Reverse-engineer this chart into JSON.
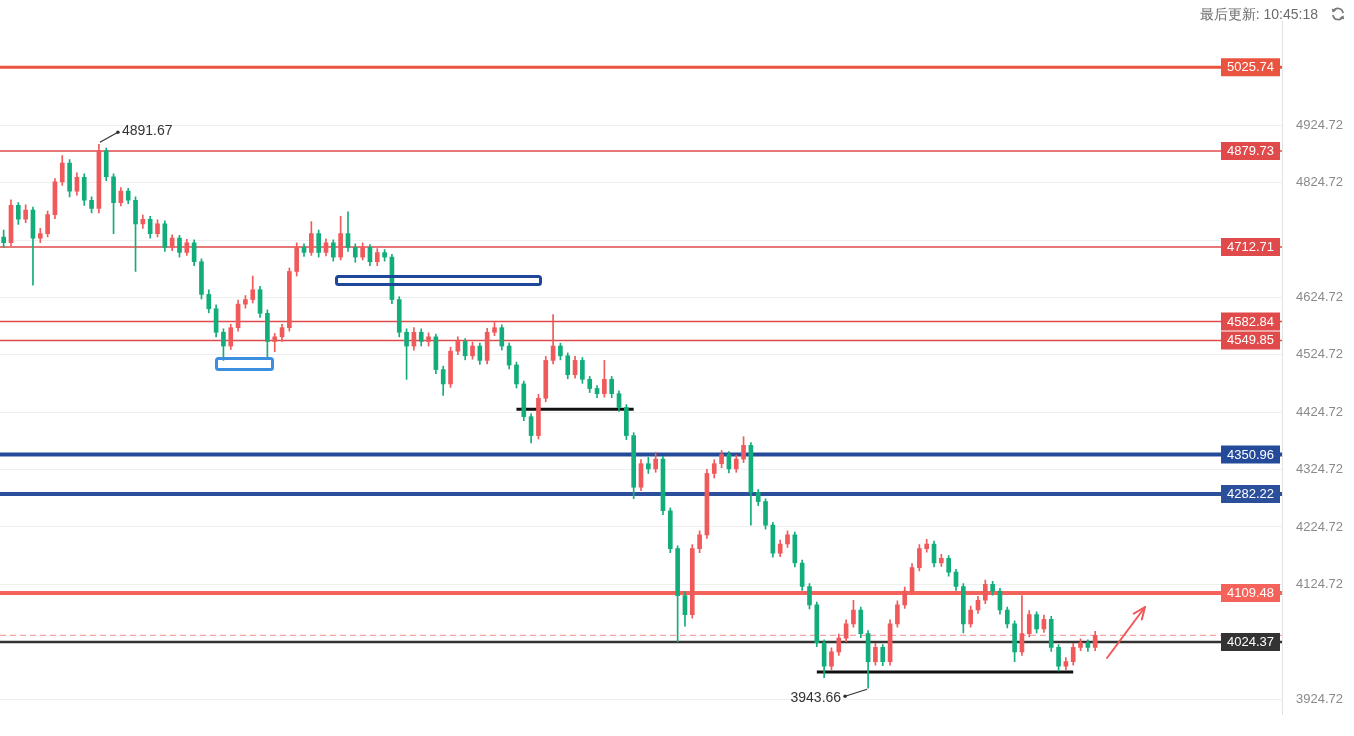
{
  "chart_data": {
    "type": "candlestick",
    "categories": [
      null,
      null,
      null,
      null,
      null,
      null,
      null,
      null,
      null,
      null,
      null,
      null,
      null,
      null,
      null,
      null,
      null,
      null,
      null,
      null,
      null,
      null,
      null,
      null,
      null,
      null,
      null,
      null,
      null,
      null,
      null,
      null,
      null,
      null,
      null,
      null,
      null,
      null,
      null,
      null,
      null,
      null,
      null,
      null,
      null,
      null,
      null,
      null,
      null,
      null,
      null,
      null,
      null,
      null,
      null,
      null,
      null,
      null,
      null,
      null,
      null,
      null,
      null,
      null,
      null,
      null,
      null,
      null,
      null,
      null,
      null,
      null,
      null,
      null,
      null,
      null,
      null,
      null,
      null,
      null,
      null,
      null,
      null,
      null,
      null,
      null,
      null,
      null,
      null,
      null,
      null,
      null,
      null,
      null,
      null,
      null,
      null,
      null,
      null,
      null,
      null,
      null,
      null,
      null,
      null,
      null,
      null,
      null,
      null,
      null,
      null,
      null,
      null,
      null,
      null,
      null,
      null,
      null,
      null,
      null,
      null,
      null,
      null,
      null,
      null,
      null,
      null,
      null,
      null,
      null,
      null,
      null,
      null,
      null,
      null,
      null,
      null,
      null,
      null,
      null,
      null,
      null,
      null,
      null,
      null,
      null,
      null,
      null,
      null,
      null,
      null,
      null,
      null,
      null,
      null,
      null,
      null,
      null,
      null,
      null,
      null,
      null,
      null,
      null,
      null,
      null,
      null,
      null,
      null,
      null,
      null,
      null,
      null,
      null,
      null
    ],
    "ohlc": [
      [
        4730,
        4742,
        4712,
        4720
      ],
      [
        4720,
        4795,
        4715,
        4785
      ],
      [
        4785,
        4790,
        4752,
        4761
      ],
      [
        4761,
        4786,
        4755,
        4777
      ],
      [
        4777,
        4782,
        4646,
        4728
      ],
      [
        4728,
        4745,
        4720,
        4736
      ],
      [
        4736,
        4775,
        4730,
        4769
      ],
      [
        4769,
        4832,
        4762,
        4826
      ],
      [
        4826,
        4872,
        4820,
        4859
      ],
      [
        4859,
        4865,
        4800,
        4810
      ],
      [
        4810,
        4842,
        4803,
        4834
      ],
      [
        4834,
        4840,
        4785,
        4794
      ],
      [
        4794,
        4800,
        4772,
        4780
      ],
      [
        4780,
        4891.67,
        4772,
        4880
      ],
      [
        4880,
        4885,
        4828,
        4835
      ],
      [
        4835,
        4840,
        4736,
        4790
      ],
      [
        4790,
        4816,
        4784,
        4810
      ],
      [
        4810,
        4815,
        4788,
        4794
      ],
      [
        4794,
        4800,
        4670,
        4753
      ],
      [
        4753,
        4768,
        4745,
        4761
      ],
      [
        4761,
        4766,
        4728,
        4736
      ],
      [
        4736,
        4760,
        4730,
        4753
      ],
      [
        4753,
        4758,
        4705,
        4712
      ],
      [
        4712,
        4734,
        4706,
        4728
      ],
      [
        4728,
        4733,
        4695,
        4703
      ],
      [
        4703,
        4726,
        4698,
        4720
      ],
      [
        4720,
        4725,
        4680,
        4687
      ],
      [
        4687,
        4692,
        4622,
        4630
      ],
      [
        4630,
        4638,
        4598,
        4605
      ],
      [
        4605,
        4612,
        4556,
        4564
      ],
      [
        4564,
        4570,
        4515,
        4540
      ],
      [
        4540,
        4578,
        4534,
        4572
      ],
      [
        4572,
        4620,
        4566,
        4613
      ],
      [
        4613,
        4628,
        4606,
        4621
      ],
      [
        4621,
        4662,
        4615,
        4638
      ],
      [
        4638,
        4644,
        4590,
        4597
      ],
      [
        4597,
        4603,
        4518,
        4548
      ],
      [
        4548,
        4562,
        4530,
        4556
      ],
      [
        4556,
        4578,
        4548,
        4572
      ],
      [
        4572,
        4676,
        4566,
        4670
      ],
      [
        4670,
        4720,
        4662,
        4712
      ],
      [
        4712,
        4718,
        4696,
        4703
      ],
      [
        4703,
        4757,
        4698,
        4736
      ],
      [
        4736,
        4742,
        4695,
        4703
      ],
      [
        4703,
        4727,
        4697,
        4720
      ],
      [
        4720,
        4725,
        4688,
        4695
      ],
      [
        4695,
        4766,
        4690,
        4736
      ],
      [
        4736,
        4774,
        4705,
        4712
      ],
      [
        4712,
        4718,
        4686,
        4695
      ],
      [
        4695,
        4720,
        4690,
        4712
      ],
      [
        4712,
        4717,
        4680,
        4687
      ],
      [
        4687,
        4710,
        4680,
        4703
      ],
      [
        4703,
        4708,
        4688,
        4695
      ],
      [
        4695,
        4700,
        4614,
        4621
      ],
      [
        4621,
        4626,
        4556,
        4564
      ],
      [
        4564,
        4570,
        4482,
        4540
      ],
      [
        4540,
        4572,
        4533,
        4564
      ],
      [
        4564,
        4570,
        4540,
        4548
      ],
      [
        4548,
        4563,
        4540,
        4556
      ],
      [
        4556,
        4561,
        4492,
        4499
      ],
      [
        4499,
        4505,
        4454,
        4474
      ],
      [
        4474,
        4538,
        4468,
        4531
      ],
      [
        4531,
        4556,
        4525,
        4548
      ],
      [
        4548,
        4553,
        4516,
        4523
      ],
      [
        4523,
        4547,
        4517,
        4540
      ],
      [
        4540,
        4545,
        4508,
        4515
      ],
      [
        4515,
        4571,
        4509,
        4564
      ],
      [
        4564,
        4581,
        4558,
        4572
      ],
      [
        4572,
        4577,
        4533,
        4540
      ],
      [
        4540,
        4545,
        4500,
        4507
      ],
      [
        4507,
        4512,
        4467,
        4474
      ],
      [
        4474,
        4479,
        4410,
        4417
      ],
      [
        4417,
        4422,
        4371,
        4384
      ],
      [
        4384,
        4456,
        4378,
        4449
      ],
      [
        4449,
        4522,
        4443,
        4515
      ],
      [
        4515,
        4595,
        4509,
        4540
      ],
      [
        4540,
        4545,
        4516,
        4523
      ],
      [
        4523,
        4528,
        4483,
        4490
      ],
      [
        4490,
        4522,
        4484,
        4515
      ],
      [
        4515,
        4520,
        4475,
        4482
      ],
      [
        4482,
        4487,
        4459,
        4466
      ],
      [
        4466,
        4471,
        4450,
        4457
      ],
      [
        4457,
        4515,
        4451,
        4482
      ],
      [
        4482,
        4487,
        4450,
        4457
      ],
      [
        4457,
        4462,
        4426,
        4433
      ],
      [
        4433,
        4438,
        4377,
        4384
      ],
      [
        4384,
        4389,
        4274,
        4294
      ],
      [
        4294,
        4342,
        4288,
        4335
      ],
      [
        4335,
        4346,
        4318,
        4326
      ],
      [
        4326,
        4355,
        4320,
        4343
      ],
      [
        4343,
        4348,
        4246,
        4253
      ],
      [
        4253,
        4258,
        4180,
        4187
      ],
      [
        4187,
        4192,
        4025,
        4105
      ],
      [
        4105,
        4112,
        4052,
        4072
      ],
      [
        4072,
        4194,
        4066,
        4187
      ],
      [
        4187,
        4218,
        4180,
        4211
      ],
      [
        4211,
        4325,
        4205,
        4318
      ],
      [
        4318,
        4342,
        4310,
        4335
      ],
      [
        4335,
        4358,
        4328,
        4351
      ],
      [
        4351,
        4356,
        4319,
        4326
      ],
      [
        4326,
        4350,
        4320,
        4343
      ],
      [
        4343,
        4382,
        4337,
        4367
      ],
      [
        4367,
        4372,
        4228,
        4285
      ],
      [
        4285,
        4290,
        4262,
        4269
      ],
      [
        4269,
        4274,
        4221,
        4228
      ],
      [
        4228,
        4233,
        4172,
        4179
      ],
      [
        4179,
        4202,
        4173,
        4195
      ],
      [
        4195,
        4218,
        4189,
        4211
      ],
      [
        4211,
        4216,
        4155,
        4162
      ],
      [
        4162,
        4167,
        4114,
        4121
      ],
      [
        4121,
        4126,
        4082,
        4089
      ],
      [
        4089,
        4094,
        4016,
        4023
      ],
      [
        4023,
        4028,
        3962,
        3982
      ],
      [
        3982,
        4014,
        3976,
        4007
      ],
      [
        4007,
        4038,
        4001,
        4031
      ],
      [
        4031,
        4063,
        4025,
        4056
      ],
      [
        4056,
        4097,
        4050,
        4080
      ],
      [
        4080,
        4085,
        4032,
        4039
      ],
      [
        4039,
        4044,
        3943.66,
        3990
      ],
      [
        3990,
        4022,
        3984,
        4015
      ],
      [
        4015,
        4020,
        3983,
        3990
      ],
      [
        3990,
        4063,
        3984,
        4056
      ],
      [
        4056,
        4096,
        4050,
        4089
      ],
      [
        4089,
        4120,
        4083,
        4113
      ],
      [
        4113,
        4161,
        4107,
        4154
      ],
      [
        4154,
        4194,
        4148,
        4187
      ],
      [
        4187,
        4203,
        4181,
        4195
      ],
      [
        4195,
        4200,
        4155,
        4162
      ],
      [
        4162,
        4177,
        4156,
        4170
      ],
      [
        4170,
        4175,
        4139,
        4146
      ],
      [
        4146,
        4151,
        4114,
        4121
      ],
      [
        4121,
        4126,
        4040,
        4056
      ],
      [
        4056,
        4087,
        4050,
        4080
      ],
      [
        4080,
        4104,
        4074,
        4097
      ],
      [
        4097,
        4132,
        4091,
        4125
      ],
      [
        4125,
        4130,
        4106,
        4113
      ],
      [
        4113,
        4118,
        4073,
        4080
      ],
      [
        4080,
        4085,
        4049,
        4056
      ],
      [
        4056,
        4061,
        3990,
        4007
      ],
      [
        4007,
        4105,
        4001,
        4039
      ],
      [
        4039,
        4079,
        4033,
        4072
      ],
      [
        4072,
        4077,
        4040,
        4047
      ],
      [
        4047,
        4071,
        4041,
        4064
      ],
      [
        4064,
        4069,
        4008,
        4015
      ],
      [
        4015,
        4020,
        3974,
        3982
      ],
      [
        3982,
        3997,
        3976,
        3990
      ],
      [
        3990,
        4022,
        3984,
        4015
      ],
      [
        4015,
        4030,
        4009,
        4023
      ],
      [
        4023,
        4028,
        4008,
        4015
      ],
      [
        4015,
        4043,
        4009,
        4036
      ],
      null,
      null,
      null,
      null,
      null,
      null,
      null,
      null,
      null,
      null,
      null,
      null,
      null,
      null,
      null,
      null,
      null,
      null,
      null,
      null,
      null,
      null,
      null,
      null,
      null
    ],
    "colors": [
      "#13ad7c",
      "#f05a5a",
      "#13ad7c",
      "#f05a5a",
      "#13ad7c",
      "#f05a5a",
      "#f05a5a",
      "#f05a5a",
      "#f05a5a",
      "#13ad7c",
      "#f05a5a",
      "#13ad7c",
      "#13ad7c",
      "#f05a5a",
      "#13ad7c",
      "#13ad7c",
      "#f05a5a",
      "#13ad7c",
      "#13ad7c",
      "#f05a5a",
      "#13ad7c",
      "#f05a5a",
      "#13ad7c",
      "#f05a5a",
      "#13ad7c",
      "#f05a5a",
      "#13ad7c",
      "#13ad7c",
      "#13ad7c",
      "#13ad7c",
      "#13ad7c",
      "#f05a5a",
      "#f05a5a",
      "#f05a5a",
      "#f05a5a",
      "#13ad7c",
      "#13ad7c",
      "#f05a5a",
      "#f05a5a",
      "#f05a5a",
      "#f05a5a",
      "#13ad7c",
      "#f05a5a",
      "#13ad7c",
      "#f05a5a",
      "#13ad7c",
      "#f05a5a",
      "#13ad7c",
      "#13ad7c",
      "#f05a5a",
      "#13ad7c",
      "#f05a5a",
      "#13ad7c",
      "#13ad7c",
      "#13ad7c",
      "#13ad7c",
      "#f05a5a",
      "#13ad7c",
      "#f05a5a",
      "#13ad7c",
      "#13ad7c",
      "#f05a5a",
      "#f05a5a",
      "#13ad7c",
      "#f05a5a",
      "#13ad7c",
      "#f05a5a",
      "#f05a5a",
      "#13ad7c",
      "#13ad7c",
      "#13ad7c",
      "#13ad7c",
      "#13ad7c",
      "#f05a5a",
      "#f05a5a",
      "#f05a5a",
      "#13ad7c",
      "#13ad7c",
      "#f05a5a",
      "#13ad7c",
      "#13ad7c",
      "#13ad7c",
      "#f05a5a",
      "#13ad7c",
      "#13ad7c",
      "#13ad7c",
      "#13ad7c",
      "#f05a5a",
      "#13ad7c",
      "#f05a5a",
      "#13ad7c",
      "#13ad7c",
      "#13ad7c",
      "#13ad7c",
      "#f05a5a",
      "#f05a5a",
      "#f05a5a",
      "#f05a5a",
      "#f05a5a",
      "#13ad7c",
      "#f05a5a",
      "#f05a5a",
      "#13ad7c",
      "#13ad7c",
      "#13ad7c",
      "#13ad7c",
      "#f05a5a",
      "#f05a5a",
      "#13ad7c",
      "#13ad7c",
      "#13ad7c",
      "#13ad7c",
      "#13ad7c",
      "#f05a5a",
      "#f05a5a",
      "#f05a5a",
      "#f05a5a",
      "#13ad7c",
      "#13ad7c",
      "#f05a5a",
      "#13ad7c",
      "#f05a5a",
      "#f05a5a",
      "#f05a5a",
      "#f05a5a",
      "#f05a5a",
      "#f05a5a",
      "#13ad7c",
      "#f05a5a",
      "#13ad7c",
      "#13ad7c",
      "#13ad7c",
      "#f05a5a",
      "#f05a5a",
      "#f05a5a",
      "#13ad7c",
      "#13ad7c",
      "#13ad7c",
      "#13ad7c",
      "#f05a5a",
      "#f05a5a",
      "#13ad7c",
      "#f05a5a",
      "#13ad7c",
      "#13ad7c",
      "#f05a5a",
      "#f05a5a",
      "#f05a5a",
      "#13ad7c",
      "#f05a5a",
      null,
      null,
      null,
      null,
      null,
      null,
      null,
      null,
      null,
      null,
      null,
      null,
      null,
      null,
      null,
      null,
      null,
      null,
      null,
      null,
      null,
      null,
      null,
      null,
      null
    ],
    "series": [
      {
        "type": "line",
        "color": "#111111",
        "values": [
          null,
          null,
          null,
          null,
          null,
          null,
          null,
          null,
          null,
          null,
          null,
          null,
          null,
          null,
          null,
          null,
          null,
          null,
          null,
          null,
          null,
          null,
          null,
          null,
          null,
          null,
          null,
          null,
          null,
          null,
          null,
          null,
          null,
          null,
          null,
          null,
          null,
          null,
          null,
          null,
          null,
          null,
          null,
          null,
          null,
          null,
          null,
          null,
          null,
          null,
          null,
          null,
          null,
          null,
          null,
          null,
          null,
          null,
          null,
          null,
          null,
          null,
          null,
          null,
          null,
          null,
          null,
          null,
          null,
          null,
          4430,
          4430,
          4430,
          4430,
          4430,
          4430,
          4430,
          4430,
          4430,
          4430,
          4430,
          4430,
          4430,
          4430,
          4430,
          4430,
          4430,
          null,
          null,
          null,
          null,
          null,
          null,
          null,
          null,
          null,
          null,
          null,
          null,
          null,
          null,
          null,
          null,
          null,
          null,
          null,
          null,
          null,
          null,
          null,
          null,
          null,
          null,
          null,
          null,
          null,
          null,
          null,
          null,
          null,
          null,
          null,
          null,
          null,
          null,
          null,
          null,
          null,
          null,
          null,
          null,
          null,
          null,
          null,
          null,
          null,
          null,
          null,
          null,
          null,
          null,
          null,
          null,
          null,
          null,
          null,
          null,
          null,
          null,
          null,
          null,
          null,
          null,
          null,
          null,
          null,
          null,
          null,
          null,
          null,
          null,
          null,
          null,
          null,
          null,
          null,
          null,
          null,
          null,
          null,
          null,
          null,
          null,
          null,
          null
        ]
      },
      {
        "type": "line",
        "color": "#111111",
        "values": [
          null,
          null,
          null,
          null,
          null,
          null,
          null,
          null,
          null,
          null,
          null,
          null,
          null,
          null,
          null,
          null,
          null,
          null,
          null,
          null,
          null,
          null,
          null,
          null,
          null,
          null,
          null,
          null,
          null,
          null,
          null,
          null,
          null,
          null,
          null,
          null,
          null,
          null,
          null,
          null,
          null,
          null,
          null,
          null,
          null,
          null,
          null,
          null,
          null,
          null,
          null,
          null,
          null,
          null,
          null,
          null,
          null,
          null,
          null,
          null,
          null,
          null,
          null,
          null,
          null,
          null,
          null,
          null,
          null,
          null,
          null,
          null,
          null,
          null,
          null,
          null,
          null,
          null,
          null,
          null,
          null,
          null,
          null,
          null,
          null,
          null,
          null,
          null,
          null,
          null,
          null,
          null,
          null,
          null,
          null,
          null,
          null,
          null,
          null,
          null,
          null,
          null,
          null,
          null,
          null,
          null,
          null,
          null,
          null,
          null,
          null,
          3972,
          3972,
          3972,
          3972,
          3972,
          3972,
          3972,
          3972,
          3972,
          3972,
          3972,
          3972,
          3972,
          3972,
          3972,
          3972,
          3972,
          3972,
          3972,
          3972,
          3972,
          3972,
          3972,
          3972,
          3972,
          3972,
          3972,
          3972,
          3972,
          3972,
          3972,
          3972,
          3972,
          3972,
          3972,
          3972,
          null,
          null,
          null,
          null,
          null,
          null,
          null,
          null,
          null,
          null,
          null,
          null,
          null,
          null,
          null,
          null,
          null,
          null,
          null,
          null,
          null,
          null,
          null,
          null,
          null,
          null,
          null,
          null
        ]
      }
    ],
    "ylim": [
      3898.5,
      5105
    ],
    "yticks": [
      3924.72,
      {
        "value": 4024.72,
        "label": null
      },
      4124.72,
      4224.72,
      4324.72,
      4424.72,
      4524.72,
      4624.72,
      {
        "value": 4724.72,
        "label": null
      },
      4824.72,
      4924.72
    ],
    "ref_lines": [
      {
        "axis": "y",
        "value": 5025.74,
        "label": "5025.74",
        "color": "#e9533f"
      },
      {
        "axis": "y",
        "value": 4879.73,
        "label": "4879.73",
        "color": "#e04a4a"
      },
      {
        "axis": "y",
        "value": 4712.71,
        "label": "4712.71",
        "color": "#e04a4a"
      },
      {
        "axis": "y",
        "value": 4582.84,
        "label": "4582.84",
        "color": "#e04a4a"
      },
      {
        "axis": "y",
        "value": 4549.85,
        "label": "4549.85",
        "color": "#e04a4a"
      },
      {
        "axis": "y",
        "value": 4350.96,
        "label": "4350.96",
        "color": "#244a9a"
      },
      {
        "axis": "y",
        "value": 4282.22,
        "label": "4282.22",
        "color": "#2c4f9c"
      },
      {
        "axis": "y",
        "value": 4109.48,
        "label": "4109.48",
        "color": "#f4625a"
      },
      {
        "axis": "y",
        "value": 4024.37,
        "label": "4024.37",
        "color": "#333333"
      },
      {
        "axis": "y",
        "value": 4036,
        "color": "#f5a3a3",
        "line_style": "dashed"
      }
    ],
    "annotations": [
      "4891.67",
      "3943.66",
      "最后更新: 10:45:18"
    ],
    "grid": "y",
    "tick_labels": "y"
  }
}
